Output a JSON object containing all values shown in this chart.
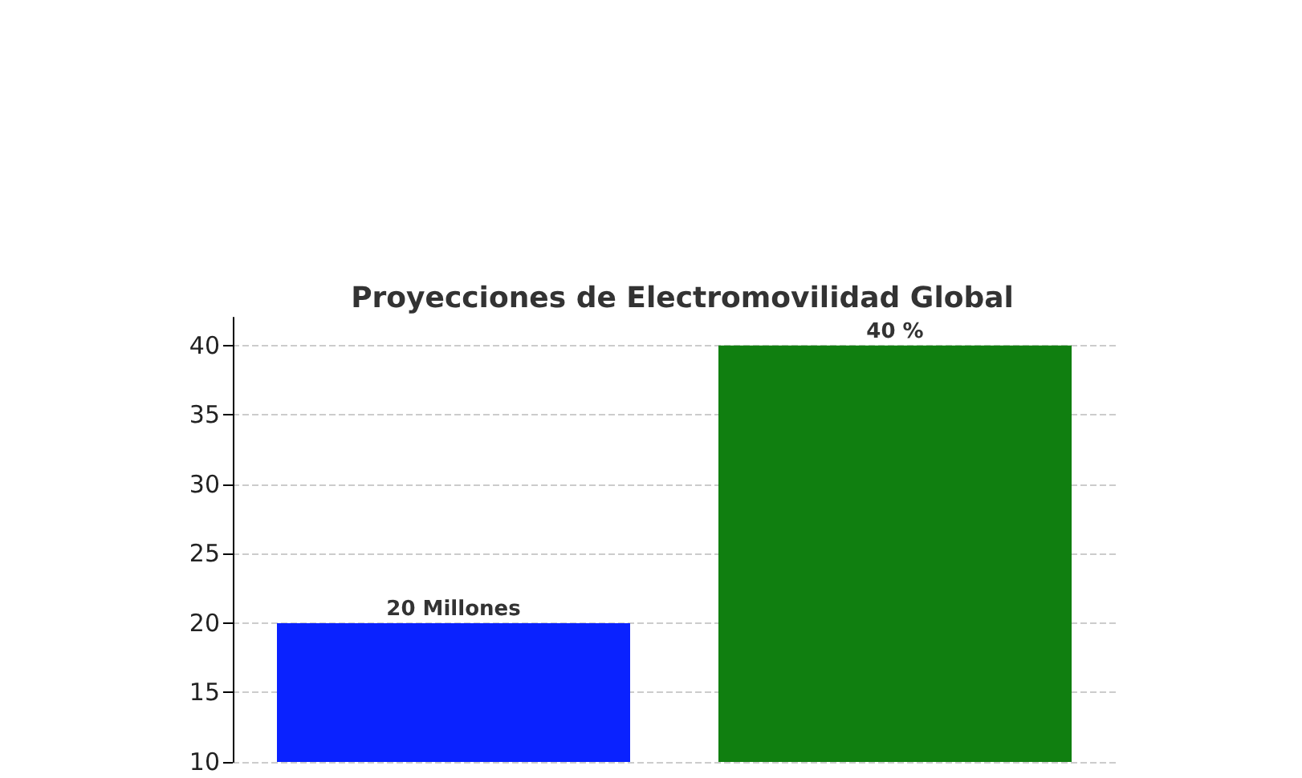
{
  "chart_data": {
    "type": "bar",
    "title": "Proyecciones de Electromovilidad Global",
    "categories": [
      null,
      null
    ],
    "values": [
      20,
      40
    ],
    "colors": [
      "#0a22ff",
      "#107f10"
    ],
    "value_labels": [
      "20 Millones",
      "40 %"
    ],
    "ylim": [
      10,
      42
    ],
    "yticks": [
      10,
      15,
      20,
      25,
      30,
      35,
      40
    ],
    "grid": true,
    "tick_labels": "y"
  }
}
